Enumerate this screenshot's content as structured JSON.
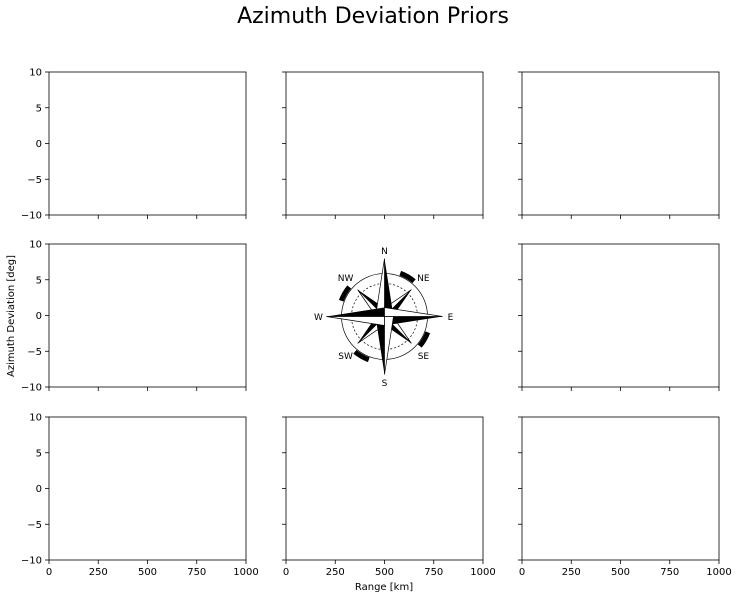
{
  "chart_data": {
    "type": "line",
    "title": "Azimuth Deviation Priors",
    "xlabel": "Range [km]",
    "ylabel": "Azimuth Deviation [deg]",
    "layout": "3x3 grid of empty panels; center panel shows a compass rose",
    "xlim": [
      0,
      1000
    ],
    "ylim": [
      -10,
      10
    ],
    "xticks": [
      "0",
      "250",
      "500",
      "750",
      "1000"
    ],
    "yticks": [
      "10",
      "5",
      "0",
      "−5",
      "−10"
    ],
    "series": [],
    "grid": false,
    "compass": {
      "labels": [
        "N",
        "NE",
        "E",
        "SE",
        "S",
        "SW",
        "W",
        "NW"
      ]
    }
  }
}
